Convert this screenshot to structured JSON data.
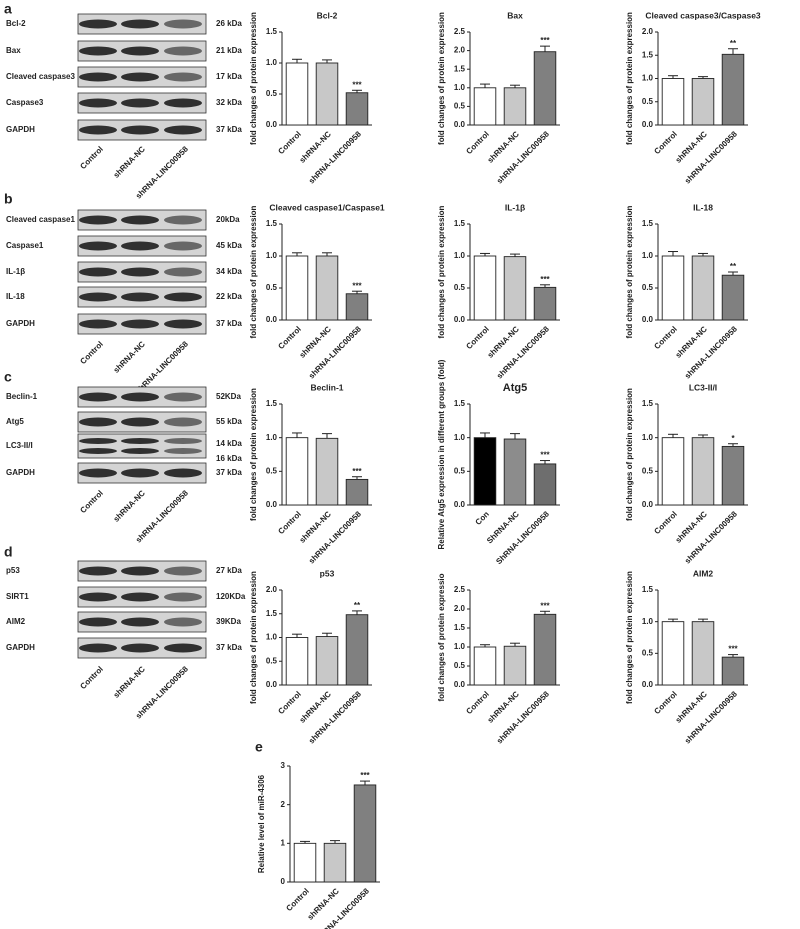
{
  "letters": [
    "a",
    "b",
    "c",
    "d",
    "e"
  ],
  "blots": [
    {
      "rows": [
        {
          "protein": "Bcl-2",
          "size": "26 kDa"
        },
        {
          "protein": "Bax",
          "size": "21 kDa"
        },
        {
          "protein": "Cleaved caspase3",
          "size": "17 kDa"
        },
        {
          "protein": "Caspase3",
          "size": "32 kDa"
        },
        {
          "protein": "GAPDH",
          "size": "37 kDa"
        }
      ],
      "lanes": [
        "Control",
        "shRNA-NC",
        "shRNA-LINC00958"
      ]
    },
    {
      "rows": [
        {
          "protein": "Cleaved caspase1",
          "size": "20kDa"
        },
        {
          "protein": "Caspase1",
          "size": "45 kDa"
        },
        {
          "protein": "IL-1β",
          "size": "34 kDa"
        },
        {
          "protein": "IL-18",
          "size": "22 kDa"
        },
        {
          "protein": "GAPDH",
          "size": "37 kDa"
        }
      ],
      "lanes": [
        "Control",
        "shRNA-NC",
        "shRNA-LINC00958"
      ]
    },
    {
      "rows": [
        {
          "protein": "Beclin-1",
          "size": "52KDa"
        },
        {
          "protein": "Atg5",
          "size": "55 kDa"
        },
        {
          "protein": "LC3-II/I",
          "size": "14 kDa"
        },
        {
          "size": "16 kDa"
        },
        {
          "protein": "GAPDH",
          "size": "37 kDa"
        }
      ],
      "lanes": [
        "Control",
        "shRNA-NC",
        "shRNA-LINC00958"
      ]
    },
    {
      "rows": [
        {
          "protein": "p53",
          "size": "27 kDa"
        },
        {
          "protein": "SIRT1",
          "size": "120KDa"
        },
        {
          "protein": "AIM2",
          "size": "39KDa"
        },
        {
          "protein": "GAPDH",
          "size": "37 kDa"
        }
      ],
      "lanes": [
        "Control",
        "shRNA-NC",
        "shRNA-LINC00958"
      ]
    }
  ],
  "chart_data": [
    {
      "type": "bar",
      "title": "Bcl-2",
      "ylabel": "fold changes of protein expression",
      "categories": [
        "Control",
        "shRNA-NC",
        "shRNA-LINC00958"
      ],
      "values": [
        1.0,
        1.0,
        0.52
      ],
      "errors": [
        0.06,
        0.05,
        0.04
      ],
      "significance": "***",
      "colors": [
        "#ffffff",
        "#c8c8c8",
        "#808080"
      ],
      "ylim": [
        0,
        1.5
      ],
      "yticks": [
        {
          "value": 0,
          "label": "0.0"
        },
        0.5,
        {
          "value": 1,
          "label": "1.0"
        },
        1.5
      ]
    },
    {
      "type": "bar",
      "title": "Bax",
      "ylabel": "fold changes of protein expression",
      "categories": [
        "Control",
        "shRNA-NC",
        "shRNA-LINC00958"
      ],
      "values": [
        1.0,
        1.0,
        1.97
      ],
      "errors": [
        0.1,
        0.07,
        0.15
      ],
      "significance": "***",
      "colors": [
        "#ffffff",
        "#c8c8c8",
        "#808080"
      ],
      "ylim": [
        0,
        2.5
      ],
      "yticks": [
        {
          "value": 0,
          "label": "0.0"
        },
        0.5,
        {
          "value": 1,
          "label": "1.0"
        },
        1.5,
        {
          "value": 2,
          "label": "2.0"
        },
        2.5
      ]
    },
    {
      "type": "bar",
      "title": "Cleaved caspase3/Caspase3",
      "ylabel": "fold changes of protein expression",
      "categories": [
        "Control",
        "shRNA-NC",
        "shRNA-LINC00958"
      ],
      "values": [
        1.0,
        1.0,
        1.52
      ],
      "errors": [
        0.06,
        0.04,
        0.12
      ],
      "significance": "**",
      "colors": [
        "#ffffff",
        "#c8c8c8",
        "#808080"
      ],
      "ylim": [
        0,
        2
      ],
      "yticks": [
        {
          "value": 0,
          "label": "0.0"
        },
        0.5,
        {
          "value": 1,
          "label": "1.0"
        },
        1.5,
        {
          "value": 2,
          "label": "2.0"
        }
      ]
    },
    {
      "type": "bar",
      "title": "Cleaved caspase1/Caspase1",
      "ylabel": "fold changes of protein expression",
      "categories": [
        "Control",
        "shRNA-NC",
        "shRNA-LINC00958"
      ],
      "values": [
        1.0,
        1.0,
        0.41
      ],
      "errors": [
        0.05,
        0.05,
        0.04
      ],
      "significance": "***",
      "colors": [
        "#ffffff",
        "#c8c8c8",
        "#808080"
      ],
      "ylim": [
        0,
        1.5
      ],
      "yticks": [
        {
          "value": 0,
          "label": "0.0"
        },
        0.5,
        {
          "value": 1,
          "label": "1.0"
        },
        1.5
      ]
    },
    {
      "type": "bar",
      "title": "IL-1β",
      "ylabel": "fold changes of protein expression",
      "categories": [
        "Control",
        "shRNA-NC",
        "shRNA-LINC00958"
      ],
      "values": [
        1.0,
        0.99,
        0.51
      ],
      "errors": [
        0.04,
        0.04,
        0.04
      ],
      "significance": "***",
      "colors": [
        "#ffffff",
        "#c8c8c8",
        "#808080"
      ],
      "ylim": [
        0,
        1.5
      ],
      "yticks": [
        {
          "value": 0,
          "label": "0.0"
        },
        0.5,
        {
          "value": 1,
          "label": "1.0"
        },
        1.5
      ]
    },
    {
      "type": "bar",
      "title": "IL-18",
      "ylabel": "fold changes of protein expression",
      "categories": [
        "Control",
        "shRNA-NC",
        "shRNA-LINC00958"
      ],
      "values": [
        1.0,
        1.0,
        0.7
      ],
      "errors": [
        0.07,
        0.04,
        0.05
      ],
      "significance": "**",
      "colors": [
        "#ffffff",
        "#c8c8c8",
        "#808080"
      ],
      "ylim": [
        0,
        1.5
      ],
      "yticks": [
        {
          "value": 0,
          "label": "0.0"
        },
        0.5,
        {
          "value": 1,
          "label": "1.0"
        },
        1.5
      ]
    },
    {
      "type": "bar",
      "title": "Beclin-1",
      "ylabel": "fold changes of protein expression",
      "categories": [
        "Control",
        "shRNA-NC",
        "shRNA-LINC00958"
      ],
      "values": [
        1.0,
        0.99,
        0.38
      ],
      "errors": [
        0.07,
        0.07,
        0.04
      ],
      "significance": "***",
      "colors": [
        "#ffffff",
        "#c8c8c8",
        "#808080"
      ],
      "ylim": [
        0,
        1.5
      ],
      "yticks": [
        {
          "value": 0,
          "label": "0.0"
        },
        0.5,
        {
          "value": 1,
          "label": "1.0"
        },
        1.5
      ]
    },
    {
      "type": "bar",
      "title": "Atg5",
      "ylabel": "Relative Atg5 expression in different groups (fold)",
      "categories": [
        "Con",
        "ShRNA-NC",
        "ShRNA-LINC00958"
      ],
      "values": [
        1.0,
        0.98,
        0.61
      ],
      "errors": [
        0.07,
        0.08,
        0.05
      ],
      "significance": "***",
      "colors": [
        "#000000",
        "#8c8c8c",
        "#6e6e6e"
      ],
      "ylim": [
        0,
        1.5
      ],
      "yticks": [
        {
          "value": 0,
          "label": "0.0"
        },
        0.5,
        {
          "value": 1,
          "label": "1.0"
        },
        1.5
      ]
    },
    {
      "type": "bar",
      "title": "LC3-II/I",
      "ylabel": "fold changes of protein expression",
      "categories": [
        "Control",
        "shRNA-NC",
        "shRNA-LINC00958"
      ],
      "values": [
        1.0,
        1.0,
        0.87
      ],
      "errors": [
        0.05,
        0.04,
        0.04
      ],
      "significance": "*",
      "colors": [
        "#ffffff",
        "#c8c8c8",
        "#808080"
      ],
      "ylim": [
        0,
        1.5
      ],
      "yticks": [
        {
          "value": 0,
          "label": "0.0"
        },
        0.5,
        {
          "value": 1,
          "label": "1.0"
        },
        1.5
      ]
    },
    {
      "type": "bar",
      "title": "p53",
      "ylabel": "fold changes of protein expression",
      "categories": [
        "Control",
        "shRNA-NC",
        "shRNA-LINC00958"
      ],
      "values": [
        1.0,
        1.02,
        1.48
      ],
      "errors": [
        0.07,
        0.07,
        0.08
      ],
      "significance": "**",
      "colors": [
        "#ffffff",
        "#c8c8c8",
        "#808080"
      ],
      "ylim": [
        0,
        2
      ],
      "yticks": [
        {
          "value": 0,
          "label": "0.0"
        },
        0.5,
        {
          "value": 1,
          "label": "1.0"
        },
        1.5,
        {
          "value": 2,
          "label": "2.0"
        }
      ]
    },
    {
      "type": "bar",
      "ylabel": "fold changes of protein expressio",
      "categories": [
        "Control",
        "shRNA-NC",
        "shRNA-LINC00958"
      ],
      "values": [
        1.0,
        1.02,
        1.86
      ],
      "errors": [
        0.06,
        0.08,
        0.08
      ],
      "significance": "***",
      "colors": [
        "#ffffff",
        "#c8c8c8",
        "#808080"
      ],
      "ylim": [
        0,
        2.5
      ],
      "yticks": [
        {
          "value": 0,
          "label": "0.0"
        },
        0.5,
        {
          "value": 1,
          "label": "1.0"
        },
        1.5,
        {
          "value": 2,
          "label": "2.0"
        },
        2.5
      ]
    },
    {
      "type": "bar",
      "title": "AIM2",
      "ylabel": "fold changes of protein expression",
      "categories": [
        "Control",
        "shRNA-NC",
        "shRNA-LINC00958"
      ],
      "values": [
        1.0,
        1.0,
        0.44
      ],
      "errors": [
        0.04,
        0.04,
        0.04
      ],
      "significance": "***",
      "colors": [
        "#ffffff",
        "#c8c8c8",
        "#808080"
      ],
      "ylim": [
        0,
        1.5
      ],
      "yticks": [
        {
          "value": 0,
          "label": "0.0"
        },
        0.5,
        {
          "value": 1,
          "label": "1.0"
        },
        1.5
      ]
    },
    {
      "type": "bar",
      "ylabel": "Relative level of miR-4306",
      "categories": [
        "Control",
        "shRNA-NC",
        "shRNA-LINC00958"
      ],
      "values": [
        1.0,
        1.0,
        2.51
      ],
      "errors": [
        0.05,
        0.07,
        0.1
      ],
      "significance": "***",
      "colors": [
        "#ffffff",
        "#c8c8c8",
        "#808080"
      ],
      "ylim": [
        0,
        3
      ],
      "yticks": [
        0,
        1,
        2,
        3
      ]
    }
  ]
}
